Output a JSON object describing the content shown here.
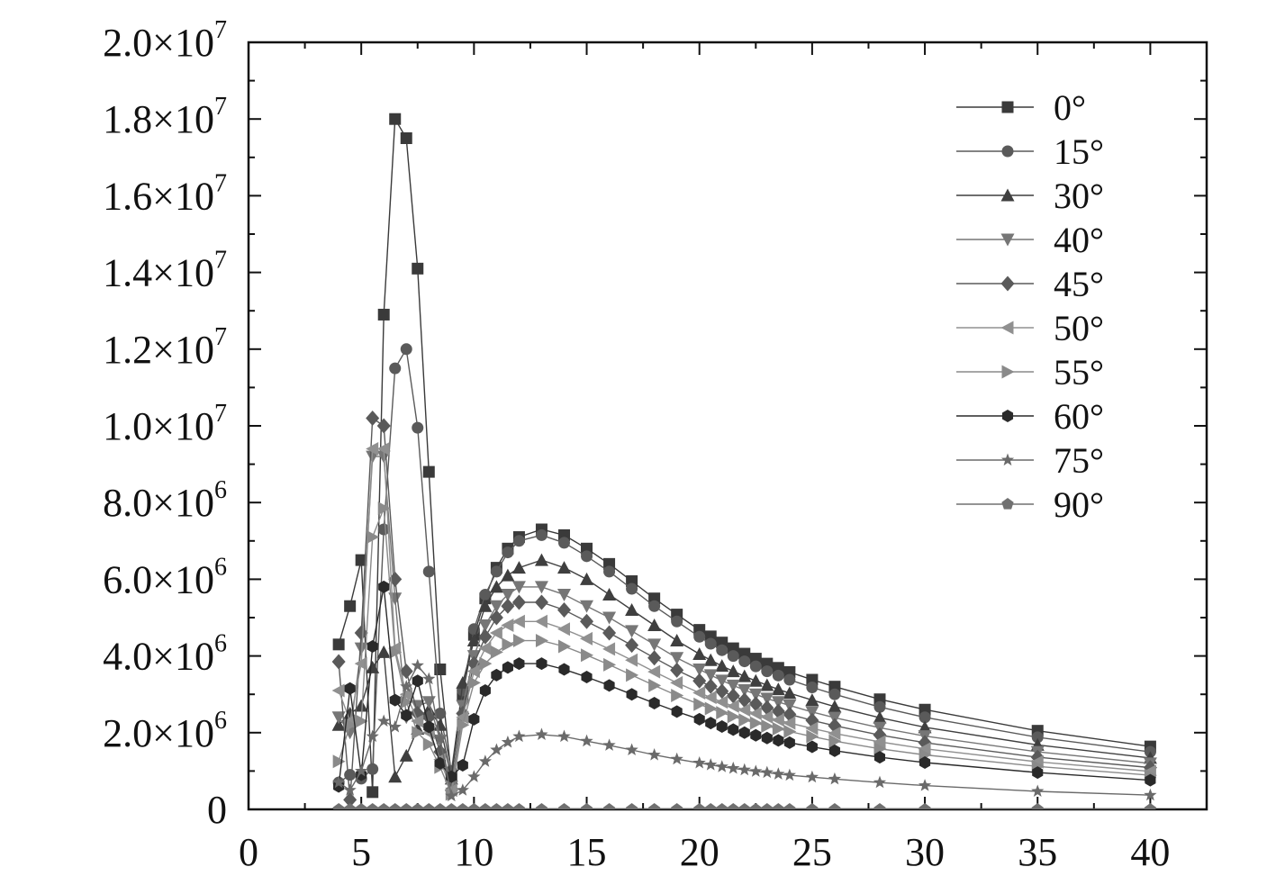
{
  "chart_data": {
    "type": "line",
    "title": "",
    "xlabel": "",
    "ylabel": "",
    "xlim": [
      0,
      42.5
    ],
    "ylim": [
      0,
      20000000
    ],
    "x_ticks": [
      0,
      5,
      10,
      15,
      20,
      25,
      30,
      35,
      40
    ],
    "x_tick_labels": [
      "0",
      "5",
      "10",
      "15",
      "20",
      "25",
      "30",
      "35",
      "40"
    ],
    "y_ticks": [
      {
        "value": 0,
        "mantissa": "0",
        "exp": ""
      },
      {
        "value": 2000000,
        "mantissa": "2.0×10",
        "exp": "6"
      },
      {
        "value": 4000000,
        "mantissa": "4.0×10",
        "exp": "6"
      },
      {
        "value": 6000000,
        "mantissa": "6.0×10",
        "exp": "6"
      },
      {
        "value": 8000000,
        "mantissa": "8.0×10",
        "exp": "6"
      },
      {
        "value": 10000000,
        "mantissa": "1.0×10",
        "exp": "7"
      },
      {
        "value": 12000000,
        "mantissa": "1.2×10",
        "exp": "7"
      },
      {
        "value": 14000000,
        "mantissa": "1.4×10",
        "exp": "7"
      },
      {
        "value": 16000000,
        "mantissa": "1.6×10",
        "exp": "7"
      },
      {
        "value": 18000000,
        "mantissa": "1.8×10",
        "exp": "7"
      },
      {
        "value": 20000000,
        "mantissa": "2.0×10",
        "exp": "7"
      }
    ],
    "grid": false,
    "legend_position": "top-right",
    "x": [
      4,
      4.5,
      5,
      5.5,
      6,
      6.5,
      7,
      7.5,
      8,
      8.5,
      9,
      9.5,
      10,
      10.5,
      11,
      11.5,
      12,
      13,
      14,
      15,
      16,
      17,
      18,
      19,
      20,
      20.5,
      21,
      21.5,
      22,
      22.5,
      23,
      23.5,
      24,
      25,
      26,
      28,
      30,
      35,
      40
    ],
    "series": [
      {
        "name": "0°",
        "marker": "square",
        "color": "#3a3a3a",
        "values": [
          4300000,
          5300000,
          6500000,
          450000,
          12900000,
          18000000,
          17500000,
          14100000,
          8800000,
          3650000,
          850000,
          3000000,
          4550000,
          5500000,
          6300000,
          6800000,
          7100000,
          7300000,
          7150000,
          6800000,
          6400000,
          5950000,
          5500000,
          5080000,
          4680000,
          4510000,
          4350000,
          4200000,
          4060000,
          3930000,
          3800000,
          3690000,
          3580000,
          3380000,
          3200000,
          2870000,
          2600000,
          2050000,
          1640000
        ]
      },
      {
        "name": "15°",
        "marker": "circle",
        "color": "#5a5a5a",
        "values": [
          700000,
          900000,
          800000,
          1050000,
          7300000,
          11500000,
          12000000,
          9950000,
          6200000,
          2500000,
          1000000,
          3100000,
          4700000,
          5600000,
          6200000,
          6700000,
          7000000,
          7150000,
          6950000,
          6600000,
          6200000,
          5750000,
          5300000,
          4900000,
          4500000,
          4320000,
          4150000,
          4000000,
          3860000,
          3730000,
          3600000,
          3490000,
          3380000,
          3180000,
          3000000,
          2670000,
          2400000,
          1880000,
          1500000
        ]
      },
      {
        "name": "30°",
        "marker": "triangle-up",
        "color": "#3f3f3f",
        "values": [
          2200000,
          2500000,
          2700000,
          3700000,
          4100000,
          850000,
          1400000,
          2100000,
          2600000,
          2200000,
          800000,
          3300000,
          4400000,
          5300000,
          5800000,
          6100000,
          6300000,
          6500000,
          6300000,
          6000000,
          5600000,
          5200000,
          4800000,
          4400000,
          4050000,
          3890000,
          3740000,
          3600000,
          3470000,
          3350000,
          3240000,
          3130000,
          3030000,
          2850000,
          2680000,
          2390000,
          2140000,
          1680000,
          1340000
        ]
      },
      {
        "name": "40°",
        "marker": "triangle-down",
        "color": "#767676",
        "values": [
          2400000,
          2000000,
          4200000,
          9200000,
          9200000,
          5500000,
          2400000,
          2700000,
          2800000,
          1800000,
          600000,
          2700000,
          4000000,
          4800000,
          5300000,
          5600000,
          5800000,
          5800000,
          5600000,
          5300000,
          5000000,
          4650000,
          4300000,
          3950000,
          3650000,
          3500000,
          3360000,
          3230000,
          3110000,
          3000000,
          2890000,
          2800000,
          2710000,
          2540000,
          2390000,
          2130000,
          1910000,
          1500000,
          1200000
        ]
      },
      {
        "name": "45°",
        "marker": "diamond",
        "color": "#5a5a5a",
        "values": [
          3850000,
          250000,
          4600000,
          10200000,
          10000000,
          6000000,
          3600000,
          2500000,
          2400000,
          1500000,
          500000,
          2500000,
          3800000,
          4500000,
          5000000,
          5300000,
          5400000,
          5400000,
          5200000,
          4900000,
          4600000,
          4280000,
          3950000,
          3630000,
          3350000,
          3210000,
          3080000,
          2960000,
          2850000,
          2750000,
          2650000,
          2560000,
          2480000,
          2320000,
          2180000,
          1940000,
          1740000,
          1360000,
          1090000
        ]
      },
      {
        "name": "50°",
        "marker": "triangle-left",
        "color": "#909090",
        "values": [
          3100000,
          2300000,
          3800000,
          9400000,
          9400000,
          4200000,
          3000000,
          2300000,
          2000000,
          1300000,
          500000,
          2400000,
          3600000,
          4200000,
          4600000,
          4800000,
          4900000,
          4900000,
          4700000,
          4450000,
          4180000,
          3890000,
          3590000,
          3300000,
          3040000,
          2920000,
          2800000,
          2690000,
          2590000,
          2500000,
          2410000,
          2330000,
          2250000,
          2110000,
          1980000,
          1760000,
          1580000,
          1240000,
          990000
        ]
      },
      {
        "name": "55°",
        "marker": "triangle-right",
        "color": "#8a8a8a",
        "values": [
          1250000,
          2200000,
          2300000,
          7100000,
          7850000,
          4100000,
          2800000,
          2000000,
          1700000,
          1100000,
          400000,
          2200000,
          3300000,
          3800000,
          4100000,
          4300000,
          4400000,
          4400000,
          4250000,
          4020000,
          3770000,
          3500000,
          3230000,
          2970000,
          2740000,
          2630000,
          2520000,
          2420000,
          2330000,
          2250000,
          2170000,
          2100000,
          2030000,
          1900000,
          1780000,
          1580000,
          1420000,
          1120000,
          890000
        ]
      },
      {
        "name": "60°",
        "marker": "hexagon",
        "color": "#2a2a2a",
        "values": [
          600000,
          3150000,
          900000,
          4250000,
          5800000,
          2850000,
          2450000,
          3350000,
          2150000,
          1200000,
          850000,
          1150000,
          2350000,
          3100000,
          3500000,
          3700000,
          3800000,
          3800000,
          3650000,
          3450000,
          3230000,
          3000000,
          2770000,
          2550000,
          2350000,
          2250000,
          2160000,
          2080000,
          2000000,
          1930000,
          1860000,
          1800000,
          1740000,
          1630000,
          1530000,
          1360000,
          1220000,
          960000,
          760000
        ]
      },
      {
        "name": "75°",
        "marker": "star",
        "color": "#6a6a6a",
        "values": [
          700000,
          500000,
          1000000,
          1900000,
          2300000,
          2150000,
          3200000,
          3750000,
          3400000,
          1850000,
          350000,
          500000,
          850000,
          1250000,
          1550000,
          1750000,
          1900000,
          1950000,
          1900000,
          1780000,
          1670000,
          1550000,
          1420000,
          1310000,
          1210000,
          1160000,
          1110000,
          1070000,
          1030000,
          990000,
          960000,
          920000,
          890000,
          840000,
          790000,
          700000,
          620000,
          470000,
          370000
        ]
      },
      {
        "name": "90°",
        "marker": "pentagon",
        "color": "#707070",
        "values": [
          0,
          0,
          0,
          0,
          0,
          0,
          0,
          0,
          0,
          0,
          0,
          0,
          0,
          0,
          0,
          0,
          0,
          0,
          0,
          0,
          0,
          0,
          0,
          0,
          0,
          0,
          0,
          0,
          0,
          0,
          0,
          0,
          0,
          0,
          0,
          0,
          0,
          0,
          0
        ]
      }
    ]
  }
}
